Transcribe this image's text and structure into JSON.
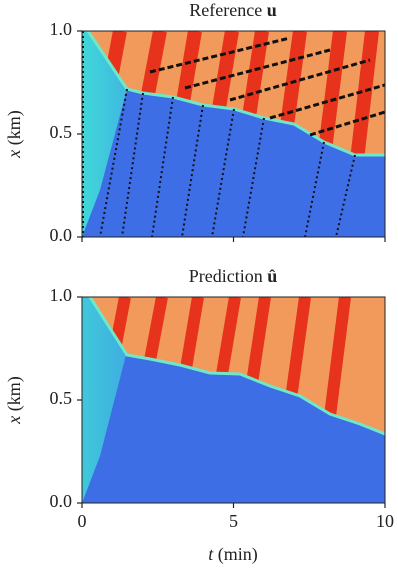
{
  "chart_data": [
    {
      "type": "heatmap",
      "title": "Reference",
      "title_symbol": "u",
      "ylabel_var": "x",
      "ylabel_unit": "(km)",
      "xlim": [
        0,
        10
      ],
      "ylim": [
        0,
        1
      ],
      "xticks": [
        0,
        5,
        10
      ],
      "yticks": [
        {
          "value": 0,
          "label": "0.0"
        },
        0.5,
        {
          "value": 1,
          "label": "1.0"
        }
      ]
    },
    {
      "type": "heatmap",
      "title": "Prediction",
      "title_symbol": "û",
      "ylabel_var": "x",
      "ylabel_unit": "(km)",
      "xlabel_var": "t",
      "xlabel_unit": "(min)",
      "xlim": [
        0,
        10
      ],
      "ylim": [
        0,
        1
      ],
      "xticks": [
        0,
        5,
        10
      ],
      "yticks": [
        {
          "value": 0,
          "label": "0.0"
        },
        0.5,
        {
          "value": 1,
          "label": "1.0"
        }
      ]
    }
  ]
}
